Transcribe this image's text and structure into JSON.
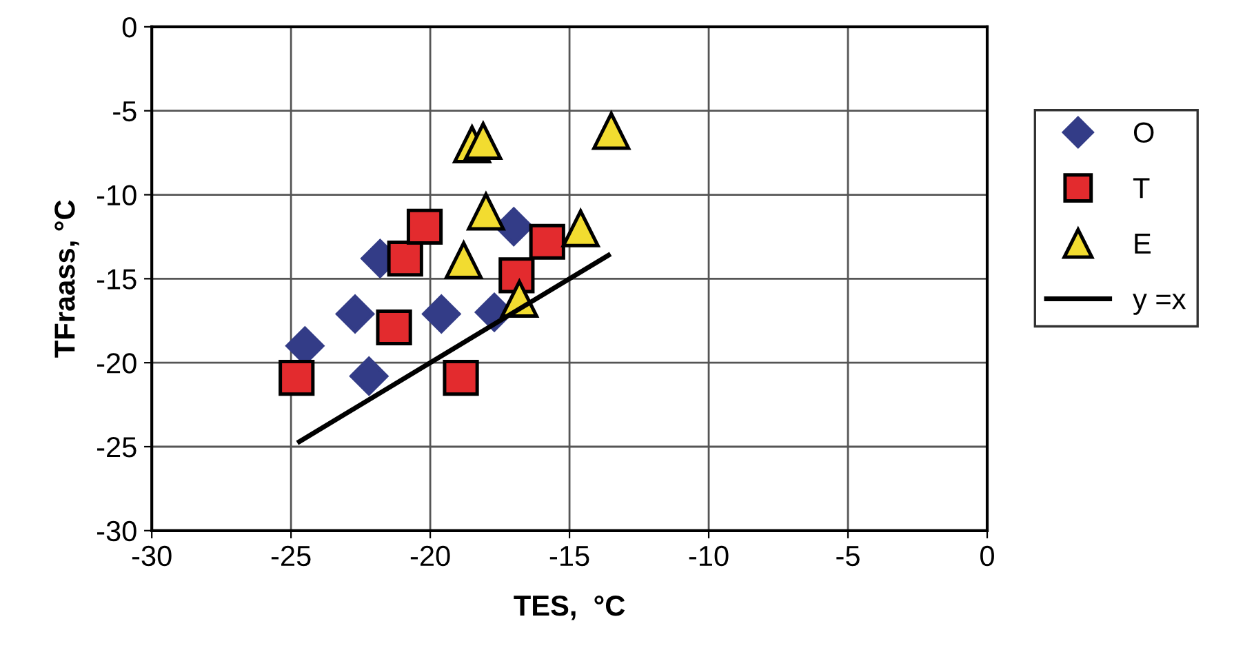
{
  "chart_data": {
    "type": "scatter",
    "xlabel": "TES,  °C",
    "ylabel": "TFraass, °C",
    "xlim": [
      -30,
      0
    ],
    "ylim": [
      -30,
      0
    ],
    "xticks": [
      -30,
      -25,
      -20,
      -15,
      -10,
      -5,
      0
    ],
    "yticks": [
      -30,
      -25,
      -20,
      -15,
      -10,
      -5,
      0
    ],
    "grid": true,
    "legend": "right",
    "series": [
      {
        "name": "O",
        "color": "#333c87",
        "marker": "diamond",
        "x": [
          -24.5,
          -22.7,
          -22.2,
          -21.8,
          -19.6,
          -17.7,
          -17
        ],
        "values": [
          -19,
          -17.1,
          -20.8,
          -13.8,
          -17.1,
          -17,
          -11.9
        ]
      },
      {
        "name": "T",
        "color": "#e32b2e",
        "marker": "square",
        "x": [
          -24.8,
          -20.9,
          -20.2,
          -21.3,
          -18.9,
          -15.8,
          -16.9
        ],
        "values": [
          -20.9,
          -13.8,
          -11.9,
          -17.9,
          -20.9,
          -12.8,
          -14.8
        ]
      },
      {
        "name": "E",
        "color": "#f2dc30",
        "marker": "triangle",
        "x": [
          -18.5,
          -18.1,
          -13.5,
          -18,
          -18.8,
          -14.6,
          -16.8
        ],
        "values": [
          -7,
          -6.8,
          -6.2,
          -11,
          -13.9,
          -12,
          -16.2
        ]
      },
      {
        "name": "y =x",
        "type": "line",
        "color": "#000000",
        "marker": "none",
        "x": [
          -24.7,
          -13.6
        ],
        "values": [
          -24.7,
          -13.6
        ]
      }
    ]
  }
}
